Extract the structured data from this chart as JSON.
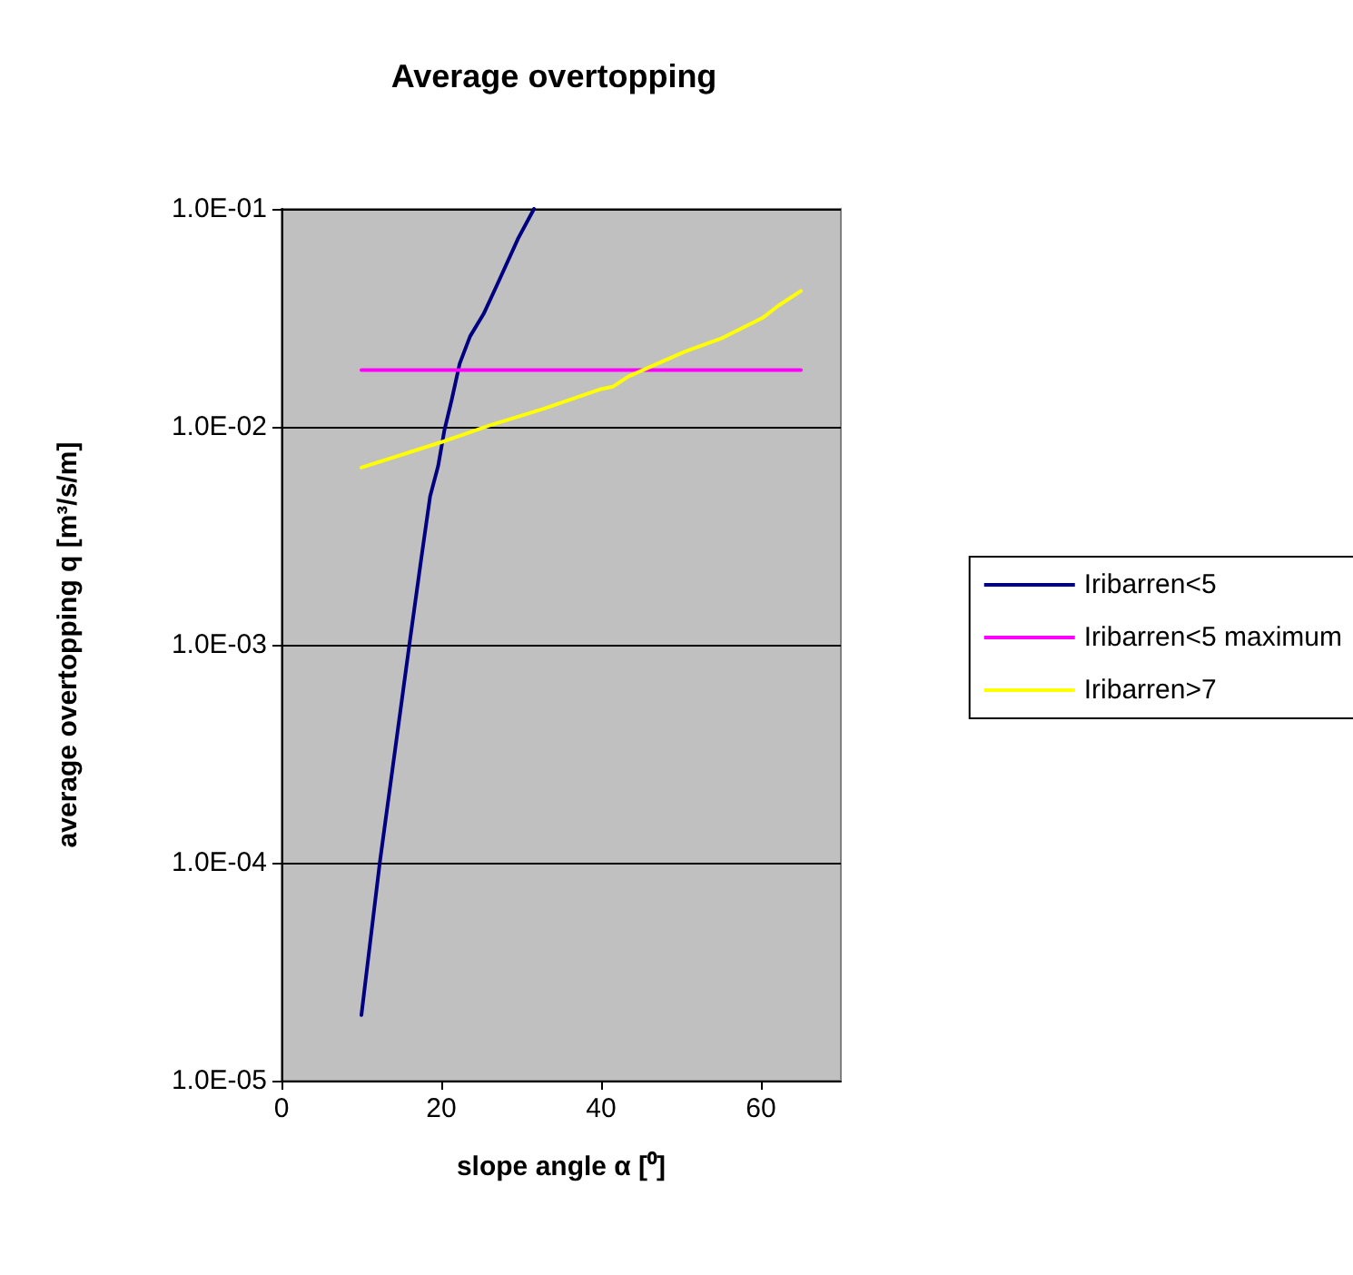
{
  "chart_data": {
    "type": "line",
    "title": "Average overtopping",
    "xlabel": "slope angle α [⁰]",
    "ylabel": "average overtopping q [m³/s/m]",
    "xlim": [
      0,
      70
    ],
    "xticks": [
      0,
      20,
      40,
      60
    ],
    "ylim": [
      1e-05,
      0.1
    ],
    "yticks": [
      {
        "value": 1e-05,
        "label": "1.0E-05"
      },
      {
        "value": 0.0001,
        "label": "1.0E-04"
      },
      {
        "value": 0.001,
        "label": "1.0E-03"
      },
      {
        "value": 0.01,
        "label": "1.0E-02"
      },
      {
        "value": 0.1,
        "label": "1.0E-01"
      }
    ],
    "log": "y",
    "grid": "y",
    "legend": "right",
    "marker": "none",
    "line_style": "solid",
    "series": [
      {
        "name": "Iribarren<5",
        "color": "#000080",
        "x": [
          10,
          12.3,
          16,
          17.5,
          18.6,
          19.6,
          20.4,
          21.3,
          22.3,
          23.6,
          25.3,
          27,
          29.6,
          31.6
        ],
        "values": [
          2e-05,
          0.0001,
          0.001,
          0.0025,
          0.0048,
          0.0066,
          0.0097,
          0.0133,
          0.0195,
          0.026,
          0.033,
          0.045,
          0.073,
          0.1
        ]
      },
      {
        "name": "Iribarren<5 maximum",
        "color": "#ff00ff",
        "x": [
          10,
          65
        ],
        "values": [
          0.0182,
          0.0182
        ]
      },
      {
        "name": "Iribarren>7",
        "color": "#ffff00",
        "x": [
          10,
          20.4,
          25.9,
          32.8,
          40,
          41.5,
          43.4,
          50.3,
          55.2,
          60.2,
          62.2,
          65
        ],
        "values": [
          0.0065,
          0.0086,
          0.0101,
          0.0121,
          0.0149,
          0.0153,
          0.017,
          0.022,
          0.0256,
          0.0316,
          0.036,
          0.042
        ]
      }
    ]
  }
}
